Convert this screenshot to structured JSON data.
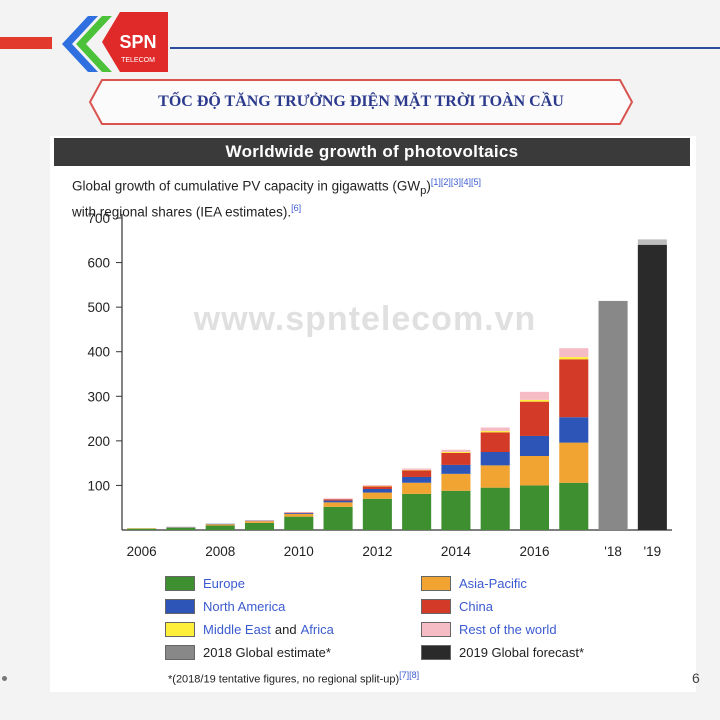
{
  "slide": {
    "title": "TỐC ĐỘ TĂNG TRƯỞNG ĐIỆN MẶT TRỜI TOÀN CẦU",
    "logo_text": "SPN",
    "logo_subtext": "TELECOM",
    "watermark": "www.spntelecom.vn",
    "page_number": "6"
  },
  "colors": {
    "europe": "#3d8f2f",
    "asia_pacific": "#f2a433",
    "north_america": "#2d55b8",
    "china": "#d33a27",
    "middle_east_africa": "#ffee3a",
    "rest_of_world": "#f6bcc6",
    "estimate_2018": "#888888",
    "forecast_2019": "#2a2a2a"
  },
  "chart_data": {
    "type": "bar",
    "title": "Worldwide growth of photovoltaics",
    "subtitle_line1": "Global growth of cumulative PV capacity in gigawatts (GW",
    "subtitle_sub": "p",
    "subtitle_refs1": "[1][2][3][4][5]",
    "subtitle_line2": "with regional shares (IEA estimates).",
    "subtitle_refs2": "[6]",
    "ylim": [
      0,
      700
    ],
    "y_ticks": [
      100,
      200,
      300,
      400,
      500,
      600,
      700
    ],
    "x_tick_labels": [
      "2006",
      "2008",
      "2010",
      "2012",
      "2014",
      "2016",
      "'18",
      "'19"
    ],
    "categories": [
      "2006",
      "2007",
      "2008",
      "2009",
      "2010",
      "2011",
      "2012",
      "2013",
      "2014",
      "2015",
      "2016",
      "2017",
      "2018",
      "2019"
    ],
    "series": [
      {
        "name": "Europe",
        "key": "europe",
        "values": [
          3,
          5,
          10,
          16,
          30,
          52,
          70,
          81,
          88,
          95,
          100,
          106,
          0,
          0
        ]
      },
      {
        "name": "Asia-Pacific",
        "key": "asia_pacific",
        "values": [
          1,
          1,
          3,
          4,
          6,
          10,
          14,
          25,
          38,
          50,
          66,
          90,
          0,
          0
        ]
      },
      {
        "name": "North America",
        "key": "north_america",
        "values": [
          0,
          1,
          1,
          1,
          2,
          4,
          8,
          13,
          20,
          30,
          45,
          57,
          0,
          0
        ]
      },
      {
        "name": "China",
        "key": "china",
        "values": [
          0,
          0,
          0,
          0,
          1,
          3,
          6,
          15,
          27,
          44,
          77,
          130,
          0,
          0
        ]
      },
      {
        "name": "Middle East and Africa",
        "key": "middle_east_africa",
        "values": [
          0,
          0,
          0,
          0,
          0,
          0,
          1,
          1,
          2,
          3,
          4,
          5,
          0,
          0
        ]
      },
      {
        "name": "Rest of the world",
        "key": "rest_of_world",
        "values": [
          0,
          0,
          0,
          1,
          1,
          2,
          2,
          3,
          5,
          8,
          18,
          20,
          0,
          0
        ]
      },
      {
        "name": "2018 Global estimate*",
        "key": "estimate_2018",
        "values": [
          0,
          0,
          0,
          0,
          0,
          0,
          0,
          0,
          0,
          0,
          0,
          0,
          514,
          0
        ]
      },
      {
        "name": "2019 Global forecast*",
        "key": "forecast_2019",
        "values": [
          0,
          0,
          0,
          0,
          0,
          0,
          0,
          0,
          0,
          0,
          0,
          0,
          0,
          640
        ]
      }
    ],
    "forecast_2019_top_light": 12,
    "legend": {
      "europe": "Europe",
      "asia_pacific": "Asia-Pacific",
      "north_america": "North America",
      "china": "China",
      "middle_east": "Middle East",
      "and_word": "and",
      "africa": "Africa",
      "rest_of_world": "Rest of the world",
      "estimate_2018": "2018 Global estimate*",
      "forecast_2019": "2019 Global forecast*"
    },
    "footnote": "*(2018/19 tentative figures, no regional split-up)",
    "footnote_refs": "[7][8]"
  }
}
